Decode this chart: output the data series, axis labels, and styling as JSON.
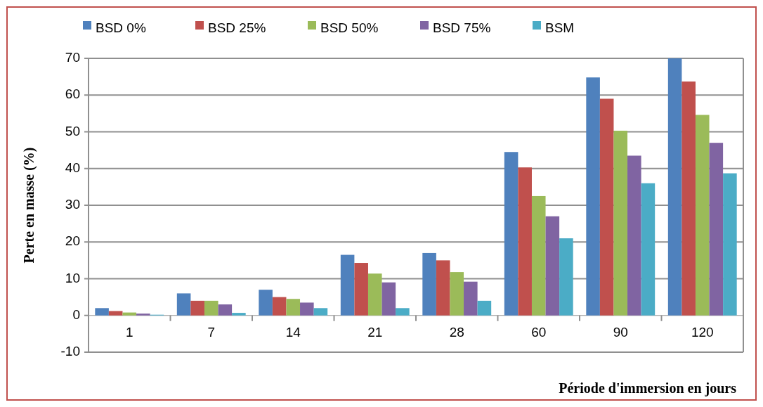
{
  "chart_data": {
    "type": "bar",
    "xlabel": "Période d'immersion en jours",
    "ylabel": "Perte en masse (%)",
    "categories": [
      "1",
      "7",
      "14",
      "21",
      "28",
      "60",
      "90",
      "120"
    ],
    "series": [
      {
        "name": "BSD 0%",
        "color": "#4f81bd",
        "values": [
          2,
          6,
          7,
          16.5,
          17,
          44.5,
          64.8,
          70
        ]
      },
      {
        "name": "BSD 25%",
        "color": "#c0504d",
        "values": [
          1.2,
          4,
          5,
          14.3,
          15,
          40.3,
          59,
          63.7
        ]
      },
      {
        "name": "BSD 50%",
        "color": "#9bbb59",
        "values": [
          0.8,
          4,
          4.5,
          11.4,
          11.8,
          32.5,
          50.3,
          54.6
        ]
      },
      {
        "name": "BSD 75%",
        "color": "#8064a2",
        "values": [
          0.5,
          3,
          3.5,
          9,
          9.2,
          27,
          43.5,
          47
        ]
      },
      {
        "name": "BSM",
        "color": "#4bacc6",
        "values": [
          0.2,
          0.7,
          2,
          2,
          4,
          21,
          36,
          38.7
        ]
      }
    ],
    "ylim": [
      -10,
      70
    ],
    "yticks": [
      -10,
      0,
      10,
      20,
      30,
      40,
      50,
      60,
      70
    ],
    "grid": "y",
    "legend": "top"
  }
}
